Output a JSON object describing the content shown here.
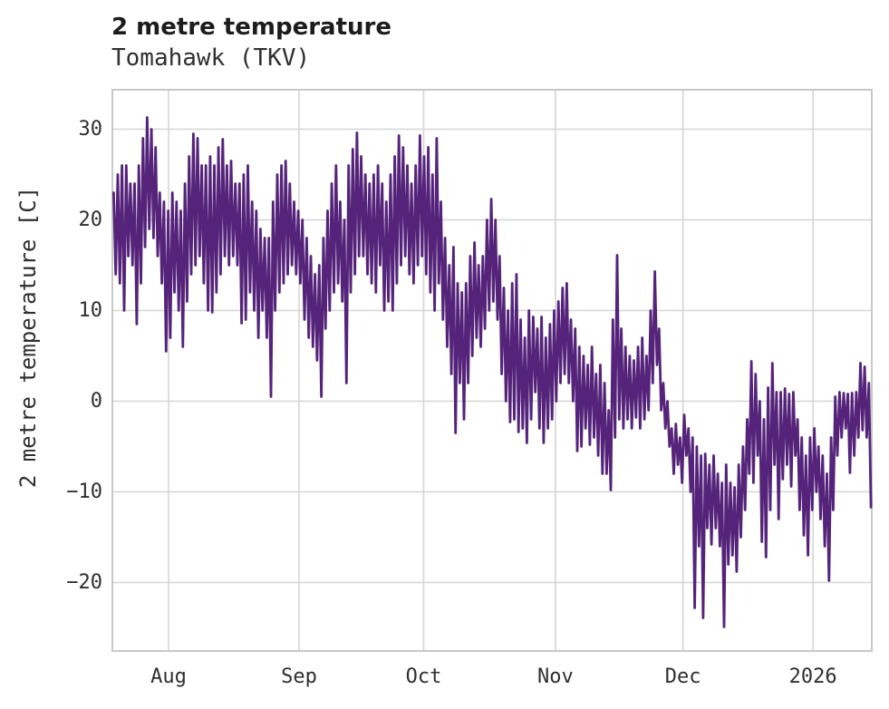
{
  "header": {
    "title": "2 metre temperature",
    "subtitle": "Tomahawk (TKV)"
  },
  "chart_data": {
    "type": "line",
    "title": "2 metre temperature",
    "subtitle": "Tomahawk (TKV)",
    "station": "Tomahawk (TKV)",
    "ylabel": "2 metre temperature [C]",
    "series_name": "2 metre temperature",
    "units": "C",
    "line_color": "#55247a",
    "grid_color": "#d5d5d5",
    "border_color": "#c8c8c8",
    "text_color": "#2f2f2f",
    "background": "#ffffff",
    "grid": true,
    "legend": "none",
    "ylim": [
      -27.55,
      34.35
    ],
    "xlim_days": [
      0,
      181
    ],
    "x_start_label": "mid-July 2025",
    "x_end_label": "mid-January 2026",
    "y_ticks": [
      {
        "label": "30",
        "value": 30
      },
      {
        "label": "20",
        "value": 20
      },
      {
        "label": "10",
        "value": 10
      },
      {
        "label": "0",
        "value": 0
      },
      {
        "label": "−10",
        "value": -10
      },
      {
        "label": "−20",
        "value": -20
      }
    ],
    "x_ticks": [
      {
        "label": "Aug",
        "day": 13.4
      },
      {
        "label": "Sep",
        "day": 44.5
      },
      {
        "label": "Oct",
        "day": 74.2
      },
      {
        "label": "Nov",
        "day": 105.6
      },
      {
        "label": "Dec",
        "day": 136.0
      },
      {
        "label": "2026",
        "day": 167.0
      }
    ],
    "daily_min_max_note": "one [min,max] pair per day from ~Jul 19 2025 (day 0) to ~Jan 15 2026 (day 180), degrees C, estimated from plot",
    "daily_min_max": [
      [
        14,
        23
      ],
      [
        13,
        25
      ],
      [
        10,
        26
      ],
      [
        16,
        26
      ],
      [
        15,
        24
      ],
      [
        8.5,
        24
      ],
      [
        13,
        26
      ],
      [
        17,
        29
      ],
      [
        19,
        31.3
      ],
      [
        18,
        30
      ],
      [
        16,
        28
      ],
      [
        13,
        23
      ],
      [
        5.5,
        22
      ],
      [
        7,
        21
      ],
      [
        12,
        23
      ],
      [
        10,
        22
      ],
      [
        6,
        21
      ],
      [
        11,
        24
      ],
      [
        14,
        27
      ],
      [
        15,
        29.5
      ],
      [
        16,
        29
      ],
      [
        13,
        26
      ],
      [
        10,
        26
      ],
      [
        9.8,
        27
      ],
      [
        12,
        26
      ],
      [
        14,
        28
      ],
      [
        16,
        28.9
      ],
      [
        15,
        26
      ],
      [
        16,
        26.5
      ],
      [
        15,
        24
      ],
      [
        8.6,
        24
      ],
      [
        9,
        25
      ],
      [
        12,
        26
      ],
      [
        10,
        22
      ],
      [
        7,
        21
      ],
      [
        10,
        19
      ],
      [
        7,
        18
      ],
      [
        0.5,
        18
      ],
      [
        10,
        22
      ],
      [
        12,
        25
      ],
      [
        13,
        26
      ],
      [
        14,
        26.5
      ],
      [
        15,
        24
      ],
      [
        14,
        22
      ],
      [
        13,
        21
      ],
      [
        9,
        20
      ],
      [
        7,
        18
      ],
      [
        6,
        16
      ],
      [
        4.5,
        14
      ],
      [
        0.5,
        15
      ],
      [
        8,
        18
      ],
      [
        10,
        21
      ],
      [
        12,
        24
      ],
      [
        13,
        26
      ],
      [
        11,
        22
      ],
      [
        2,
        20
      ],
      [
        12,
        26
      ],
      [
        14,
        27.8
      ],
      [
        16,
        29.6
      ],
      [
        16,
        27
      ],
      [
        14,
        25
      ],
      [
        13,
        24
      ],
      [
        12,
        25
      ],
      [
        15,
        26
      ],
      [
        10,
        24
      ],
      [
        11,
        22
      ],
      [
        10,
        25
      ],
      [
        13,
        27
      ],
      [
        15,
        29.3
      ],
      [
        16,
        28
      ],
      [
        14,
        26
      ],
      [
        13,
        24
      ],
      [
        15,
        26
      ],
      [
        16,
        29.3
      ],
      [
        14,
        27
      ],
      [
        12,
        28
      ],
      [
        10,
        25
      ],
      [
        13,
        29
      ],
      [
        9,
        22
      ],
      [
        6,
        18
      ],
      [
        3,
        15
      ],
      [
        -3.5,
        17
      ],
      [
        2,
        13
      ],
      [
        -2,
        12
      ],
      [
        2,
        13
      ],
      [
        5,
        16
      ],
      [
        7,
        17.5
      ],
      [
        6,
        15
      ],
      [
        8,
        16
      ],
      [
        10,
        20
      ],
      [
        11,
        22.3
      ],
      [
        9,
        20
      ],
      [
        3,
        16
      ],
      [
        0,
        12.5
      ],
      [
        -2.3,
        10
      ],
      [
        -2,
        13
      ],
      [
        -3.4,
        14
      ],
      [
        -3,
        9
      ],
      [
        -4.6,
        7
      ],
      [
        -2,
        10
      ],
      [
        1,
        9.3
      ],
      [
        -3,
        8
      ],
      [
        -4.6,
        9.3
      ],
      [
        -3,
        7
      ],
      [
        -2,
        8.5
      ],
      [
        0,
        10
      ],
      [
        2,
        11
      ],
      [
        3,
        12.5
      ],
      [
        2,
        13
      ],
      [
        0,
        9
      ],
      [
        -5.5,
        8
      ],
      [
        -5,
        6
      ],
      [
        -3,
        5
      ],
      [
        -4.8,
        4
      ],
      [
        -4,
        6
      ],
      [
        -6,
        3
      ],
      [
        -8,
        4
      ],
      [
        -8,
        2
      ],
      [
        -9.8,
        -1
      ],
      [
        -4,
        9
      ],
      [
        -2,
        16.1
      ],
      [
        -3,
        8
      ],
      [
        -2,
        6
      ],
      [
        -3,
        5
      ],
      [
        -1.8,
        4.5
      ],
      [
        -3,
        6
      ],
      [
        -2,
        7
      ],
      [
        -1,
        5
      ],
      [
        2,
        10
      ],
      [
        4,
        14.3
      ],
      [
        -1,
        8
      ],
      [
        -3,
        2
      ],
      [
        -5,
        0
      ],
      [
        -8,
        -3
      ],
      [
        -7,
        -2.5
      ],
      [
        -9,
        -4
      ],
      [
        -6,
        -1.5
      ],
      [
        -10,
        -3
      ],
      [
        -22.8,
        -4
      ],
      [
        -16,
        -5
      ],
      [
        -23.9,
        -6
      ],
      [
        -14,
        -5.8
      ],
      [
        -15.8,
        -7
      ],
      [
        -14,
        -6
      ],
      [
        -16,
        -8
      ],
      [
        -24.9,
        -9
      ],
      [
        -18,
        -7
      ],
      [
        -17,
        -9
      ],
      [
        -18.8,
        -9.5
      ],
      [
        -15,
        -7
      ],
      [
        -12,
        -5
      ],
      [
        -8,
        -2
      ],
      [
        -9,
        4.4
      ],
      [
        -6,
        3
      ],
      [
        -15.5,
        0
      ],
      [
        -17.2,
        -2
      ],
      [
        -12,
        1.5
      ],
      [
        -7,
        4.2
      ],
      [
        -13,
        1
      ],
      [
        -8.6,
        1
      ],
      [
        -7,
        1.4
      ],
      [
        -9.4,
        0.8
      ],
      [
        -6,
        1
      ],
      [
        -12,
        -2
      ],
      [
        -14.8,
        -4
      ],
      [
        -17,
        -6
      ],
      [
        -12,
        -4
      ],
      [
        -10,
        -3
      ],
      [
        -13,
        -5
      ],
      [
        -16,
        -6
      ],
      [
        -19.8,
        -8
      ],
      [
        -12,
        -4
      ],
      [
        -6,
        0.5
      ],
      [
        -4,
        1
      ],
      [
        -3,
        0.9
      ],
      [
        -7.9,
        0.8
      ],
      [
        -6,
        0.9
      ],
      [
        -4,
        1
      ],
      [
        -3.2,
        4.2
      ],
      [
        -4,
        3.8
      ],
      [
        -11.7,
        2
      ]
    ]
  }
}
